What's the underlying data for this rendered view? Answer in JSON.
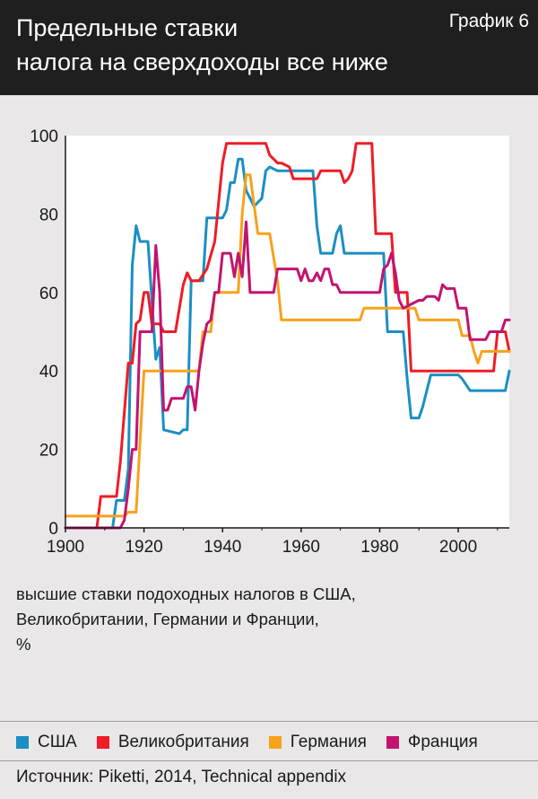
{
  "header": {
    "title_lines": [
      "Предельные ставки",
      "налога на сверхдоходы все ниже"
    ],
    "tag": "График 6"
  },
  "caption_lines": [
    "высшие ставки подоходных налогов в США,",
    "Великобритании, Германии и Франции,",
    "%"
  ],
  "source": "Источник: Piketti, 2014, Technical appendix",
  "colors": {
    "header_bg": "#1f1f1f",
    "background": "#e9e7e8",
    "usa": "#1b8fc3",
    "uk": "#ee1c25",
    "germany": "#f7a21b",
    "france": "#c2146f"
  },
  "chart_data": {
    "type": "line",
    "title": "Предельные ставки налога на сверхдоходы все ниже",
    "xlabel": "",
    "ylabel": "%",
    "xlim": [
      1900,
      2013
    ],
    "ylim": [
      0,
      100
    ],
    "x_ticks": [
      1900,
      1920,
      1940,
      1960,
      1980,
      2000
    ],
    "y_ticks": [
      0,
      20,
      40,
      60,
      80,
      100
    ],
    "grid": false,
    "legend_position": "bottom",
    "series": [
      {
        "name": "США",
        "color": "#1b8fc3",
        "points": [
          [
            1900,
            0
          ],
          [
            1912,
            0
          ],
          [
            1913,
            7
          ],
          [
            1915,
            7
          ],
          [
            1916,
            15
          ],
          [
            1917,
            67
          ],
          [
            1918,
            77
          ],
          [
            1919,
            73
          ],
          [
            1921,
            73
          ],
          [
            1922,
            58
          ],
          [
            1923,
            43
          ],
          [
            1924,
            46
          ],
          [
            1925,
            25
          ],
          [
            1929,
            24
          ],
          [
            1930,
            25
          ],
          [
            1931,
            25
          ],
          [
            1932,
            63
          ],
          [
            1935,
            63
          ],
          [
            1936,
            79
          ],
          [
            1940,
            79
          ],
          [
            1941,
            81
          ],
          [
            1942,
            88
          ],
          [
            1943,
            88
          ],
          [
            1944,
            94
          ],
          [
            1945,
            94
          ],
          [
            1946,
            86
          ],
          [
            1948,
            82
          ],
          [
            1950,
            84
          ],
          [
            1951,
            91
          ],
          [
            1952,
            92
          ],
          [
            1954,
            91
          ],
          [
            1963,
            91
          ],
          [
            1964,
            77
          ],
          [
            1965,
            70
          ],
          [
            1968,
            70
          ],
          [
            1969,
            75
          ],
          [
            1970,
            77
          ],
          [
            1971,
            70
          ],
          [
            1981,
            70
          ],
          [
            1982,
            50
          ],
          [
            1986,
            50
          ],
          [
            1987,
            38
          ],
          [
            1988,
            28
          ],
          [
            1990,
            28
          ],
          [
            1991,
            31
          ],
          [
            1993,
            39
          ],
          [
            2000,
            39
          ],
          [
            2001,
            38
          ],
          [
            2003,
            35
          ],
          [
            2012,
            35
          ],
          [
            2013,
            40
          ]
        ]
      },
      {
        "name": "Великобритания",
        "color": "#ee1c25",
        "points": [
          [
            1900,
            0
          ],
          [
            1908,
            0
          ],
          [
            1909,
            8
          ],
          [
            1913,
            8
          ],
          [
            1914,
            17
          ],
          [
            1916,
            42
          ],
          [
            1917,
            42
          ],
          [
            1918,
            52
          ],
          [
            1919,
            53
          ],
          [
            1920,
            60
          ],
          [
            1921,
            60
          ],
          [
            1922,
            52
          ],
          [
            1924,
            52
          ],
          [
            1925,
            50
          ],
          [
            1928,
            50
          ],
          [
            1930,
            62
          ],
          [
            1931,
            65
          ],
          [
            1932,
            63
          ],
          [
            1934,
            63
          ],
          [
            1936,
            66
          ],
          [
            1938,
            73
          ],
          [
            1939,
            83
          ],
          [
            1940,
            93
          ],
          [
            1941,
            98
          ],
          [
            1951,
            98
          ],
          [
            1952,
            95
          ],
          [
            1953,
            94
          ],
          [
            1954,
            93
          ],
          [
            1955,
            93
          ],
          [
            1957,
            92
          ],
          [
            1958,
            89
          ],
          [
            1964,
            89
          ],
          [
            1965,
            91
          ],
          [
            1970,
            91
          ],
          [
            1971,
            88
          ],
          [
            1972,
            89
          ],
          [
            1973,
            91
          ],
          [
            1974,
            98
          ],
          [
            1978,
            98
          ],
          [
            1979,
            75
          ],
          [
            1983,
            75
          ],
          [
            1984,
            60
          ],
          [
            1987,
            60
          ],
          [
            1988,
            40
          ],
          [
            2009,
            40
          ],
          [
            2010,
            50
          ],
          [
            2012,
            50
          ],
          [
            2013,
            45
          ]
        ]
      },
      {
        "name": "Германия",
        "color": "#f7a21b",
        "points": [
          [
            1900,
            3
          ],
          [
            1915,
            3
          ],
          [
            1916,
            4
          ],
          [
            1918,
            4
          ],
          [
            1920,
            40
          ],
          [
            1934,
            40
          ],
          [
            1935,
            50
          ],
          [
            1937,
            50
          ],
          [
            1938,
            60
          ],
          [
            1944,
            60
          ],
          [
            1945,
            80
          ],
          [
            1946,
            90
          ],
          [
            1947,
            90
          ],
          [
            1949,
            75
          ],
          [
            1952,
            75
          ],
          [
            1954,
            63
          ],
          [
            1955,
            53
          ],
          [
            1975,
            53
          ],
          [
            1976,
            56
          ],
          [
            1989,
            56
          ],
          [
            1990,
            53
          ],
          [
            2000,
            53
          ],
          [
            2001,
            49
          ],
          [
            2003,
            49
          ],
          [
            2004,
            45
          ],
          [
            2005,
            42
          ],
          [
            2006,
            45
          ],
          [
            2013,
            45
          ]
        ]
      },
      {
        "name": "Франция",
        "color": "#c2146f",
        "points": [
          [
            1900,
            0
          ],
          [
            1914,
            0
          ],
          [
            1915,
            2
          ],
          [
            1916,
            10
          ],
          [
            1917,
            20
          ],
          [
            1918,
            20
          ],
          [
            1919,
            50
          ],
          [
            1922,
            50
          ],
          [
            1923,
            72
          ],
          [
            1924,
            60
          ],
          [
            1925,
            30
          ],
          [
            1926,
            30
          ],
          [
            1927,
            33
          ],
          [
            1930,
            33
          ],
          [
            1931,
            36
          ],
          [
            1932,
            36
          ],
          [
            1933,
            30
          ],
          [
            1934,
            40
          ],
          [
            1935,
            47
          ],
          [
            1936,
            52
          ],
          [
            1937,
            53
          ],
          [
            1938,
            60
          ],
          [
            1939,
            60
          ],
          [
            1940,
            70
          ],
          [
            1942,
            70
          ],
          [
            1943,
            64
          ],
          [
            1944,
            70
          ],
          [
            1945,
            64
          ],
          [
            1946,
            78
          ],
          [
            1947,
            60
          ],
          [
            1953,
            60
          ],
          [
            1954,
            66
          ],
          [
            1959,
            66
          ],
          [
            1960,
            63
          ],
          [
            1961,
            66
          ],
          [
            1962,
            63
          ],
          [
            1963,
            63
          ],
          [
            1964,
            65
          ],
          [
            1965,
            63
          ],
          [
            1966,
            66
          ],
          [
            1967,
            66
          ],
          [
            1968,
            62
          ],
          [
            1969,
            62
          ],
          [
            1970,
            60
          ],
          [
            1980,
            60
          ],
          [
            1981,
            66
          ],
          [
            1982,
            67
          ],
          [
            1983,
            70
          ],
          [
            1984,
            65
          ],
          [
            1985,
            58
          ],
          [
            1986,
            56
          ],
          [
            1988,
            57
          ],
          [
            1990,
            58
          ],
          [
            1991,
            58
          ],
          [
            1992,
            59
          ],
          [
            1994,
            59
          ],
          [
            1995,
            58
          ],
          [
            1996,
            62
          ],
          [
            1997,
            61
          ],
          [
            1998,
            61
          ],
          [
            1999,
            61
          ],
          [
            2000,
            56
          ],
          [
            2002,
            56
          ],
          [
            2003,
            48
          ],
          [
            2007,
            48
          ],
          [
            2008,
            50
          ],
          [
            2011,
            50
          ],
          [
            2012,
            53
          ],
          [
            2013,
            53
          ]
        ]
      }
    ]
  }
}
